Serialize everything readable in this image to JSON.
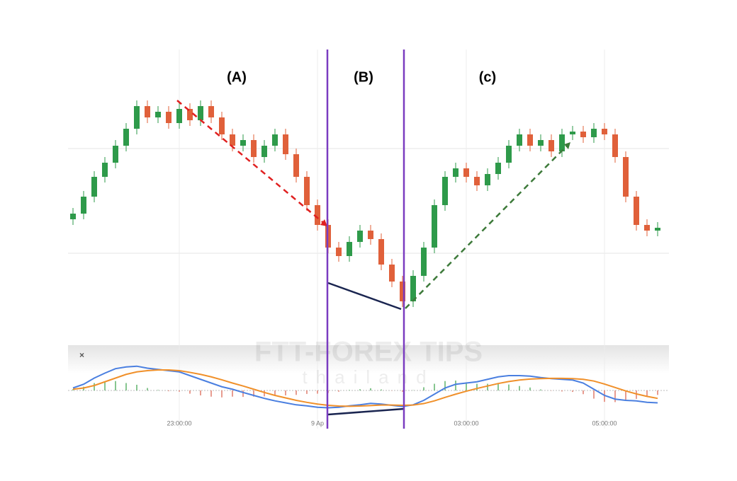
{
  "chart_data": {
    "type": "candlestick",
    "annotations": [
      "(A)",
      "(B)",
      "(c)"
    ],
    "watermark": [
      "FTT-FOREX TIPS",
      "thailand"
    ],
    "categories": [
      null,
      null,
      null,
      null,
      null,
      null,
      null,
      null,
      null,
      null,
      "23:00:00",
      null,
      null,
      null,
      null,
      null,
      null,
      null,
      null,
      null,
      null,
      null,
      null,
      "9 Ap",
      null,
      null,
      null,
      null,
      null,
      null,
      null,
      null,
      null,
      null,
      null,
      null,
      null,
      "03:00:00",
      null,
      null,
      null,
      null,
      null,
      null,
      null,
      null,
      null,
      null,
      null,
      null,
      "05:00:00",
      null,
      null,
      null,
      null,
      null
    ],
    "open": [
      40,
      42,
      48,
      55,
      60,
      66,
      72,
      80,
      76,
      78,
      74,
      79,
      75,
      80,
      76,
      70,
      66,
      68,
      62,
      66,
      70,
      63,
      55,
      45,
      38,
      30,
      27,
      32,
      36,
      33,
      24,
      18,
      11,
      20,
      30,
      45,
      55,
      58,
      55,
      52,
      56,
      60,
      66,
      70,
      66,
      68,
      64,
      70,
      71,
      69,
      72,
      70,
      62,
      48,
      38,
      36
    ],
    "high": [
      44,
      50,
      57,
      62,
      68,
      74,
      82,
      82,
      80,
      80,
      81,
      81,
      82,
      82,
      78,
      72,
      70,
      70,
      68,
      72,
      72,
      65,
      57,
      47,
      40,
      32,
      34,
      38,
      38,
      35,
      26,
      20,
      22,
      32,
      47,
      57,
      60,
      60,
      57,
      58,
      62,
      68,
      72,
      72,
      70,
      70,
      72,
      73,
      73,
      74,
      74,
      72,
      64,
      50,
      40,
      39
    ],
    "low": [
      38,
      40,
      46,
      53,
      58,
      64,
      70,
      74,
      74,
      72,
      72,
      73,
      73,
      74,
      68,
      64,
      64,
      60,
      60,
      64,
      61,
      53,
      43,
      36,
      28,
      25,
      25,
      30,
      31,
      22,
      16,
      9,
      9,
      18,
      28,
      43,
      53,
      53,
      50,
      50,
      54,
      58,
      64,
      64,
      64,
      62,
      62,
      68,
      67,
      67,
      68,
      60,
      46,
      36,
      34,
      34
    ],
    "close": [
      42,
      48,
      55,
      60,
      66,
      72,
      80,
      76,
      78,
      74,
      79,
      75,
      80,
      76,
      70,
      66,
      68,
      62,
      66,
      70,
      63,
      55,
      45,
      38,
      30,
      27,
      32,
      36,
      33,
      24,
      18,
      11,
      20,
      30,
      45,
      55,
      58,
      55,
      52,
      56,
      60,
      66,
      70,
      66,
      68,
      64,
      70,
      71,
      69,
      72,
      70,
      62,
      48,
      38,
      36,
      37
    ],
    "up_color": "#2e9a4a",
    "down_color": "#e0603a",
    "ylim": [
      0,
      100
    ],
    "indicator": {
      "ylim": [
        -12,
        12
      ],
      "series": [
        {
          "color": "#4a7fe0",
          "values": [
            1,
            2.5,
            5,
            7,
            8.8,
            9.5,
            9.8,
            9,
            8.5,
            8,
            7.5,
            6,
            4.5,
            3,
            1.5,
            0.5,
            -0.8,
            -2,
            -3.2,
            -4.2,
            -5,
            -5.8,
            -6.2,
            -6.8,
            -7,
            -6.8,
            -6.2,
            -5.8,
            -5.2,
            -5.5,
            -6,
            -6.5,
            -5.8,
            -4,
            -1.5,
            1,
            2.5,
            3,
            3.5,
            4.5,
            5.5,
            6,
            6,
            5.8,
            5.2,
            4.8,
            4.5,
            4.2,
            3,
            0.5,
            -2,
            -3.5,
            -4,
            -4.2,
            -4.8,
            -5
          ]
        },
        {
          "color": "#f0902a",
          "values": [
            0.5,
            1,
            2,
            3.5,
            5,
            6.5,
            7.5,
            8,
            8.3,
            8.3,
            8,
            7.3,
            6.5,
            5.5,
            4.3,
            3,
            1.8,
            0.5,
            -0.8,
            -2,
            -3,
            -4,
            -4.8,
            -5.5,
            -6,
            -6.3,
            -6.4,
            -6.3,
            -6.1,
            -5.9,
            -5.9,
            -6,
            -5.9,
            -5.3,
            -4.2,
            -2.8,
            -1.5,
            -0.3,
            0.8,
            1.8,
            2.8,
            3.6,
            4.2,
            4.6,
            4.8,
            4.9,
            4.9,
            4.8,
            4.5,
            3.8,
            2.6,
            1.2,
            -0.2,
            -1.4,
            -2.4,
            -3.2
          ]
        }
      ],
      "histogram": [
        0.5,
        1.5,
        3,
        3.5,
        3.8,
        3,
        2.3,
        1,
        0.2,
        -0.3,
        -0.5,
        -1.3,
        -2,
        -2.5,
        -2.8,
        -2.5,
        -2.6,
        -2.5,
        -2.4,
        -2.2,
        -2,
        -1.8,
        -1.4,
        -1.3,
        -1,
        -0.5,
        0.2,
        0.5,
        0.9,
        0.4,
        -0.1,
        -0.5,
        0.1,
        1.3,
        2.7,
        3.8,
        4,
        3.3,
        2.7,
        2.7,
        2.7,
        2.4,
        1.8,
        1.2,
        0.4,
        -0.1,
        -0.4,
        -0.6,
        -1.5,
        -3.3,
        -4.6,
        -4.7,
        -3.8,
        -3.4,
        -2.4,
        -1.8
      ],
      "hist_up_color": "#5fb36a",
      "hist_down_color": "#e07a6a"
    }
  }
}
